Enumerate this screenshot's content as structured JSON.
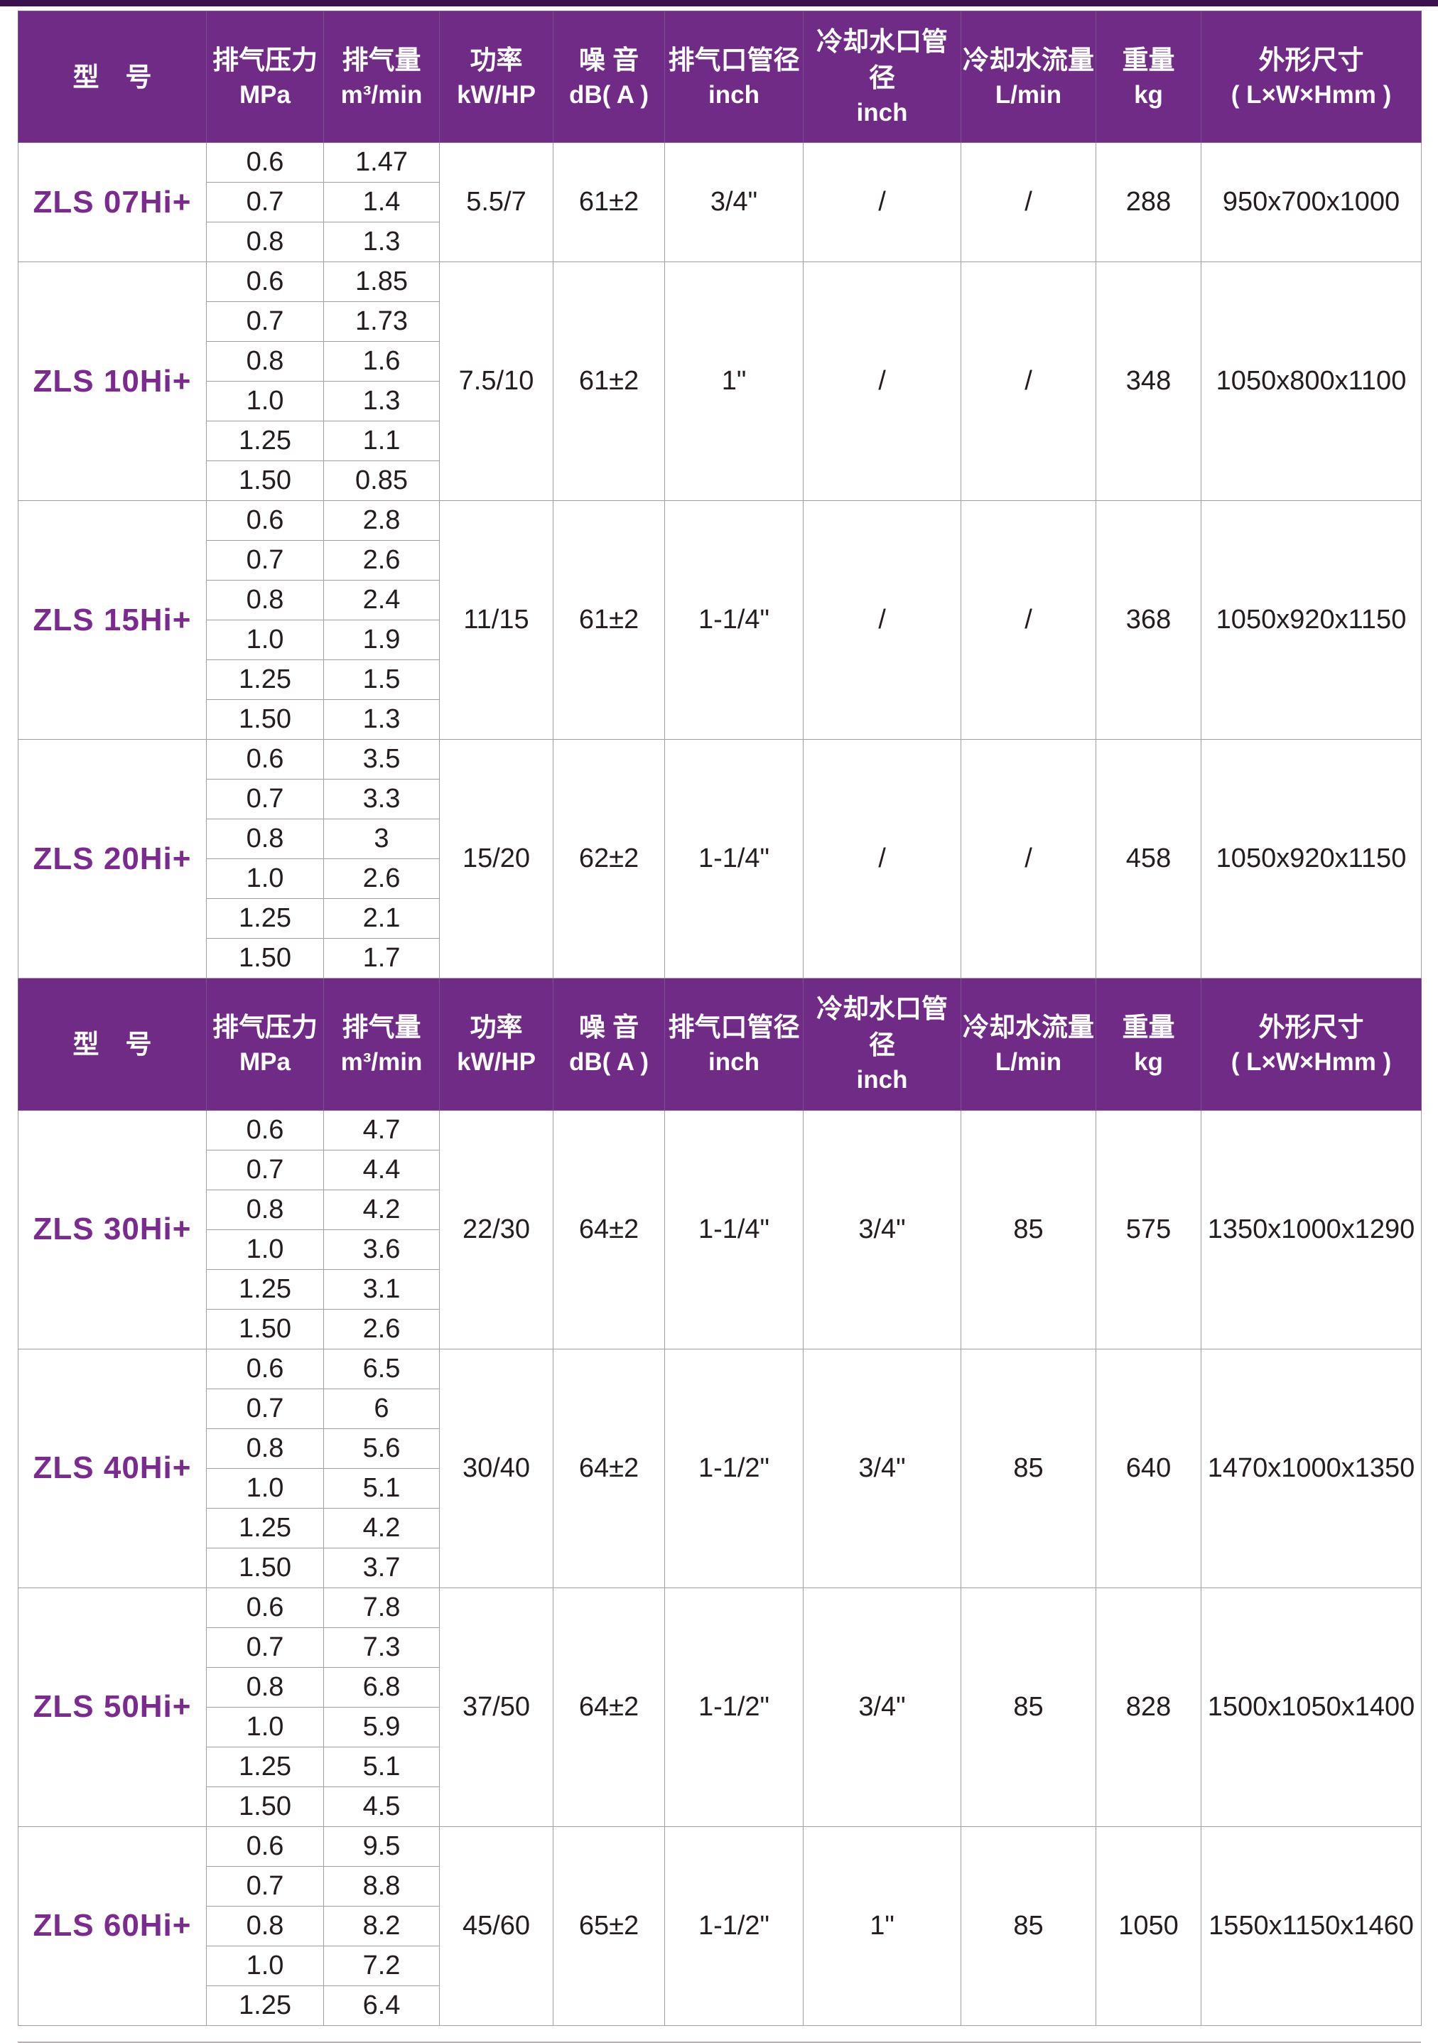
{
  "theme": {
    "header_bg": "#6f2b85",
    "top_bar": "#3c1150",
    "model_color": "#7b2b8f",
    "grid_line": "#a29da0",
    "body_text": "#241c1f"
  },
  "table": {
    "columns": [
      {
        "id": "model",
        "title": "型　号",
        "unit": ""
      },
      {
        "id": "pressure",
        "title": "排气压力",
        "unit": "MPa"
      },
      {
        "id": "volume",
        "title": "排气量",
        "unit": "m³/min"
      },
      {
        "id": "power",
        "title": "功率",
        "unit": "kW/HP"
      },
      {
        "id": "noise",
        "title": "噪 音",
        "unit": "dB( A )"
      },
      {
        "id": "outlet",
        "title": "排气口管径",
        "unit": "inch"
      },
      {
        "id": "coolant-port",
        "title": "冷却水口管径",
        "unit": "inch"
      },
      {
        "id": "coolant-flow",
        "title": "冷却水流量",
        "unit": "L/min"
      },
      {
        "id": "weight",
        "title": "重量",
        "unit": "kg"
      },
      {
        "id": "dimensions",
        "title": "外形尺寸",
        "unit": "( L×W×Hmm )"
      }
    ],
    "sections": [
      {
        "models": [
          {
            "model": "ZLS 07Hi+",
            "rows": [
              [
                "0.6",
                "1.47"
              ],
              [
                "0.7",
                "1.4"
              ],
              [
                "0.8",
                "1.3"
              ]
            ],
            "power": "5.5/7",
            "noise": "61±2",
            "outlet": "3/4\"",
            "coolant_port": "/",
            "coolant_flow": "/",
            "weight": "288",
            "dimensions": "950x700x1000"
          },
          {
            "model": "ZLS 10Hi+",
            "rows": [
              [
                "0.6",
                "1.85"
              ],
              [
                "0.7",
                "1.73"
              ],
              [
                "0.8",
                "1.6"
              ],
              [
                "1.0",
                "1.3"
              ],
              [
                "1.25",
                "1.1"
              ],
              [
                "1.50",
                "0.85"
              ]
            ],
            "power": "7.5/10",
            "noise": "61±2",
            "outlet": "1\"",
            "coolant_port": "/",
            "coolant_flow": "/",
            "weight": "348",
            "dimensions": "1050x800x1100"
          },
          {
            "model": "ZLS 15Hi+",
            "rows": [
              [
                "0.6",
                "2.8"
              ],
              [
                "0.7",
                "2.6"
              ],
              [
                "0.8",
                "2.4"
              ],
              [
                "1.0",
                "1.9"
              ],
              [
                "1.25",
                "1.5"
              ],
              [
                "1.50",
                "1.3"
              ]
            ],
            "power": "11/15",
            "noise": "61±2",
            "outlet": "1-1/4\"",
            "coolant_port": "/",
            "coolant_flow": "/",
            "weight": "368",
            "dimensions": "1050x920x1150"
          },
          {
            "model": "ZLS 20Hi+",
            "rows": [
              [
                "0.6",
                "3.5"
              ],
              [
                "0.7",
                "3.3"
              ],
              [
                "0.8",
                "3"
              ],
              [
                "1.0",
                "2.6"
              ],
              [
                "1.25",
                "2.1"
              ],
              [
                "1.50",
                "1.7"
              ]
            ],
            "power": "15/20",
            "noise": "62±2",
            "outlet": "1-1/4\"",
            "coolant_port": "/",
            "coolant_flow": "/",
            "weight": "458",
            "dimensions": "1050x920x1150"
          }
        ]
      },
      {
        "models": [
          {
            "model": "ZLS 30Hi+",
            "rows": [
              [
                "0.6",
                "4.7"
              ],
              [
                "0.7",
                "4.4"
              ],
              [
                "0.8",
                "4.2"
              ],
              [
                "1.0",
                "3.6"
              ],
              [
                "1.25",
                "3.1"
              ],
              [
                "1.50",
                "2.6"
              ]
            ],
            "power": "22/30",
            "noise": "64±2",
            "outlet": "1-1/4\"",
            "coolant_port": "3/4\"",
            "coolant_flow": "85",
            "weight": "575",
            "dimensions": "1350x1000x1290"
          },
          {
            "model": "ZLS 40Hi+",
            "rows": [
              [
                "0.6",
                "6.5"
              ],
              [
                "0.7",
                "6"
              ],
              [
                "0.8",
                "5.6"
              ],
              [
                "1.0",
                "5.1"
              ],
              [
                "1.25",
                "4.2"
              ],
              [
                "1.50",
                "3.7"
              ]
            ],
            "power": "30/40",
            "noise": "64±2",
            "outlet": "1-1/2\"",
            "coolant_port": "3/4\"",
            "coolant_flow": "85",
            "weight": "640",
            "dimensions": "1470x1000x1350"
          },
          {
            "model": "ZLS 50Hi+",
            "rows": [
              [
                "0.6",
                "7.8"
              ],
              [
                "0.7",
                "7.3"
              ],
              [
                "0.8",
                "6.8"
              ],
              [
                "1.0",
                "5.9"
              ],
              [
                "1.25",
                "5.1"
              ],
              [
                "1.50",
                "4.5"
              ]
            ],
            "power": "37/50",
            "noise": "64±2",
            "outlet": "1-1/2\"",
            "coolant_port": "3/4\"",
            "coolant_flow": "85",
            "weight": "828",
            "dimensions": "1500x1050x1400"
          },
          {
            "model": "ZLS 60Hi+",
            "rows": [
              [
                "0.6",
                "9.5"
              ],
              [
                "0.7",
                "8.8"
              ],
              [
                "0.8",
                "8.2"
              ],
              [
                "1.0",
                "7.2"
              ],
              [
                "1.25",
                "6.4"
              ]
            ],
            "power": "45/60",
            "noise": "65±2",
            "outlet": "1-1/2\"",
            "coolant_port": "1\"",
            "coolant_flow": "85",
            "weight": "1050",
            "dimensions": "1550x1150x1460"
          }
        ]
      }
    ]
  }
}
